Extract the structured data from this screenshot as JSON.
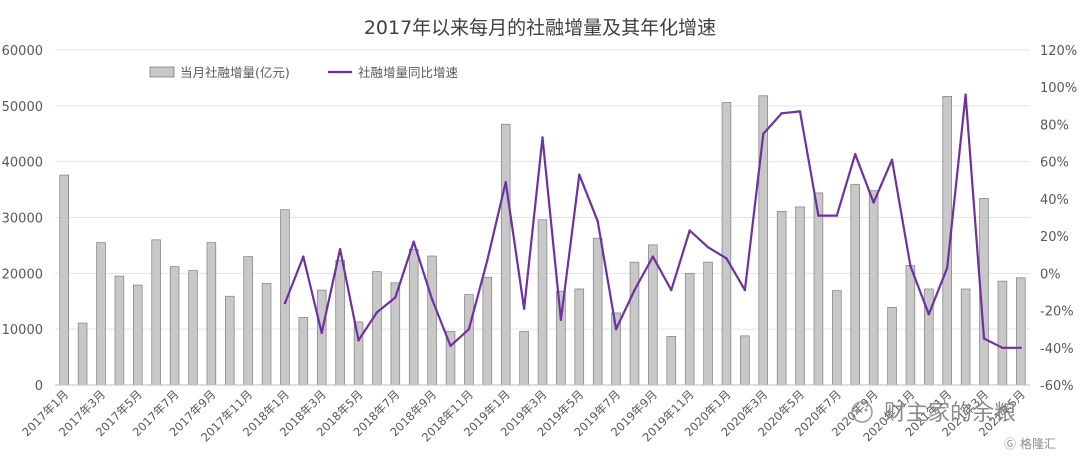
{
  "chart_data": {
    "type": "bar",
    "title": "2017年以来每月的社融增量及其年化增速",
    "categories": [
      "2017年1月",
      "2017年2月",
      "2017年3月",
      "2017年4月",
      "2017年5月",
      "2017年6月",
      "2017年7月",
      "2017年8月",
      "2017年9月",
      "2017年10月",
      "2017年11月",
      "2017年12月",
      "2018年1月",
      "2018年2月",
      "2018年3月",
      "2018年4月",
      "2018年5月",
      "2018年6月",
      "2018年7月",
      "2018年8月",
      "2018年9月",
      "2018年10月",
      "2018年11月",
      "2018年12月",
      "2019年1月",
      "2019年2月",
      "2019年3月",
      "2019年4月",
      "2019年5月",
      "2019年6月",
      "2019年7月",
      "2019年8月",
      "2019年9月",
      "2019年10月",
      "2019年11月",
      "2019年12月",
      "2020年1月",
      "2020年2月",
      "2020年3月",
      "2020年4月",
      "2020年5月",
      "2020年6月",
      "2020年7月",
      "2020年8月",
      "2020年9月",
      "2020年10月",
      "2020年11月",
      "2020年12月",
      "2021年1月",
      "2021年2月",
      "2021年3月",
      "2021年4月",
      "2021年5月"
    ],
    "x_tick_labels": [
      "2017年1月",
      "2017年3月",
      "2017年5月",
      "2017年7月",
      "2017年9月",
      "2017年11月",
      "2018年1月",
      "2018年3月",
      "2018年5月",
      "2018年7月",
      "2018年9月",
      "2018年11月",
      "2019年1月",
      "2019年3月",
      "2019年5月",
      "2019年7月",
      "2019年9月",
      "2019年11月",
      "2020年1月",
      "2020年3月",
      "2020年5月",
      "2020年7月",
      "2020年9月",
      "2020年11月",
      "2021年1月",
      "2021年3月",
      "2021年5月"
    ],
    "series": [
      {
        "name": "当月社融增量(亿元)",
        "type": "bar",
        "axis": "left",
        "color": "#c8c8c8",
        "values": [
          37600,
          11100,
          25500,
          19500,
          17900,
          26000,
          21200,
          20500,
          25500,
          15900,
          23000,
          18200,
          31400,
          12100,
          17000,
          22300,
          11300,
          20300,
          18300,
          24300,
          23100,
          9600,
          16200,
          19300,
          46700,
          9600,
          29600,
          16800,
          17200,
          26300,
          12900,
          22000,
          25100,
          8700,
          20000,
          22000,
          50600,
          8800,
          51800,
          31100,
          31900,
          34400,
          16900,
          35900,
          34800,
          13900,
          21400,
          17200,
          51700,
          17200,
          33400,
          18600,
          19200
        ]
      },
      {
        "name": "社融增量同比增速",
        "type": "line",
        "axis": "right",
        "color": "#7030a0",
        "values": [
          null,
          null,
          null,
          null,
          null,
          null,
          null,
          null,
          null,
          null,
          null,
          null,
          -16,
          9,
          -32,
          13,
          -36,
          -21,
          -13,
          17,
          -14,
          -39,
          -30,
          7,
          49,
          -19,
          73,
          -25,
          53,
          28,
          -30,
          -9,
          9,
          -9,
          23,
          14,
          8,
          -9,
          75,
          86,
          87,
          31,
          31,
          64,
          38,
          61,
          4,
          -22,
          3,
          96,
          -35,
          -40,
          -40
        ]
      }
    ],
    "y_left": {
      "min": 0,
      "max": 60000,
      "ticks": [
        "0",
        "10000",
        "20000",
        "30000",
        "40000",
        "50000",
        "60000"
      ]
    },
    "y_right": {
      "min": -60,
      "max": 120,
      "ticks": [
        "-60%",
        "-40%",
        "-20%",
        "0%",
        "20%",
        "40%",
        "60%",
        "80%",
        "100%",
        "120%"
      ]
    },
    "legend_position": "top-left",
    "grid": true,
    "watermark": "财主家的余粮",
    "watermark_badge": "格隆汇"
  }
}
